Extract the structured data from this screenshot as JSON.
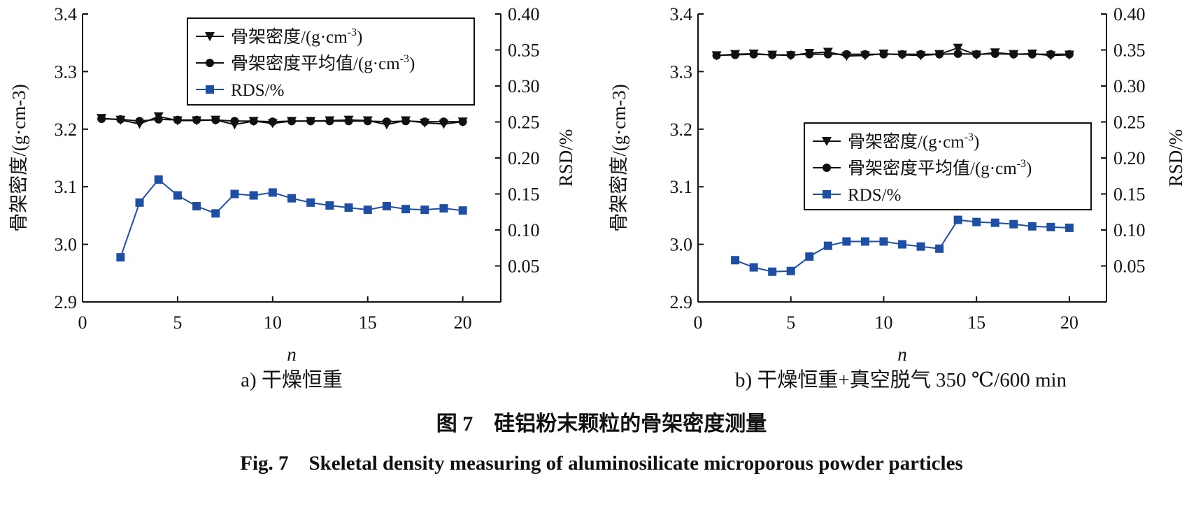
{
  "colors": {
    "density": "#111111",
    "mean": "#111111",
    "rsd": "#1f4fa3"
  },
  "chart_data": [
    {
      "type": "line",
      "subcaption": "a) 干燥恒重",
      "xlabel": "n",
      "ylabel": "骨架密度/(g·cm-3)",
      "y2label": "RSD/%",
      "xlim": [
        0,
        22
      ],
      "ylim": [
        2.9,
        3.4
      ],
      "y2lim": [
        0.0,
        0.4
      ],
      "xticks": [
        0,
        5,
        10,
        15,
        20
      ],
      "yticks": [
        2.9,
        3.0,
        3.1,
        3.2,
        3.3,
        3.4
      ],
      "y2ticks": [
        0.05,
        0.1,
        0.15,
        0.2,
        0.25,
        0.3,
        0.35,
        0.4
      ],
      "legend": {
        "placement": "top-right",
        "entries": [
          "骨架密度/(g·cm",
          "骨架密度平均值/(g·cm",
          "RDS/%"
        ],
        "superscript": "-3",
        "closing": ")"
      },
      "series": [
        {
          "name": "骨架密度",
          "axis": "left",
          "marker": "triangle-down",
          "x": [
            1,
            2,
            3,
            4,
            5,
            6,
            7,
            8,
            9,
            10,
            11,
            12,
            13,
            14,
            15,
            16,
            17,
            18,
            19,
            20
          ],
          "y": [
            3.219,
            3.216,
            3.209,
            3.222,
            3.215,
            3.215,
            3.216,
            3.208,
            3.214,
            3.21,
            3.214,
            3.214,
            3.215,
            3.216,
            3.215,
            3.208,
            3.215,
            3.211,
            3.209,
            3.213
          ]
        },
        {
          "name": "骨架密度平均值",
          "axis": "left",
          "marker": "circle",
          "x": [
            1,
            2,
            3,
            4,
            5,
            6,
            7,
            8,
            9,
            10,
            11,
            12,
            13,
            14,
            15,
            16,
            17,
            18,
            19,
            20
          ],
          "y": [
            3.218,
            3.217,
            3.214,
            3.217,
            3.216,
            3.216,
            3.216,
            3.214,
            3.214,
            3.213,
            3.214,
            3.214,
            3.214,
            3.214,
            3.214,
            3.213,
            3.214,
            3.213,
            3.213,
            3.213
          ]
        },
        {
          "name": "RDS/%",
          "axis": "right",
          "marker": "square",
          "x": [
            2,
            3,
            4,
            5,
            6,
            7,
            8,
            9,
            10,
            11,
            12,
            13,
            14,
            15,
            16,
            17,
            18,
            19,
            20
          ],
          "y": [
            0.062,
            0.138,
            0.17,
            0.148,
            0.133,
            0.123,
            0.15,
            0.148,
            0.152,
            0.144,
            0.138,
            0.134,
            0.131,
            0.128,
            0.133,
            0.129,
            0.128,
            0.13,
            0.127
          ]
        }
      ]
    },
    {
      "type": "line",
      "subcaption": "b) 干燥恒重+真空脱气 350 ℃/600 min",
      "xlabel": "n",
      "ylabel": "骨架密度/(g·cm-3)",
      "y2label": "RSD/%",
      "xlim": [
        0,
        22
      ],
      "ylim": [
        2.9,
        3.4
      ],
      "y2lim": [
        0.0,
        0.4
      ],
      "xticks": [
        0,
        5,
        10,
        15,
        20
      ],
      "yticks": [
        2.9,
        3.0,
        3.1,
        3.2,
        3.3,
        3.4
      ],
      "y2ticks": [
        0.05,
        0.1,
        0.15,
        0.2,
        0.25,
        0.3,
        0.35,
        0.4
      ],
      "legend": {
        "placement": "center-right",
        "entries": [
          "骨架密度/(g·cm",
          "骨架密度平均值/(g·cm",
          "RDS/%"
        ],
        "superscript": "-3",
        "closing": ")"
      },
      "series": [
        {
          "name": "骨架密度",
          "axis": "left",
          "marker": "triangle-down",
          "x": [
            1,
            2,
            3,
            4,
            5,
            6,
            7,
            8,
            9,
            10,
            11,
            12,
            13,
            14,
            15,
            16,
            17,
            18,
            19,
            20
          ],
          "y": [
            3.328,
            3.33,
            3.331,
            3.329,
            3.328,
            3.332,
            3.334,
            3.327,
            3.328,
            3.331,
            3.329,
            3.328,
            3.33,
            3.341,
            3.329,
            3.333,
            3.33,
            3.331,
            3.328,
            3.329
          ]
        },
        {
          "name": "骨架密度平均值",
          "axis": "left",
          "marker": "circle",
          "x": [
            1,
            2,
            3,
            4,
            5,
            6,
            7,
            8,
            9,
            10,
            11,
            12,
            13,
            14,
            15,
            16,
            17,
            18,
            19,
            20
          ],
          "y": [
            3.328,
            3.329,
            3.33,
            3.329,
            3.329,
            3.33,
            3.33,
            3.33,
            3.33,
            3.33,
            3.33,
            3.33,
            3.33,
            3.331,
            3.33,
            3.331,
            3.33,
            3.33,
            3.33,
            3.33
          ]
        },
        {
          "name": "RDS/%",
          "axis": "right",
          "marker": "square",
          "x": [
            2,
            3,
            4,
            5,
            6,
            7,
            8,
            9,
            10,
            11,
            12,
            13,
            14,
            15,
            16,
            17,
            18,
            19,
            20
          ],
          "y": [
            0.058,
            0.048,
            0.042,
            0.043,
            0.063,
            0.078,
            0.084,
            0.084,
            0.084,
            0.08,
            0.077,
            0.074,
            0.114,
            0.111,
            0.11,
            0.108,
            0.105,
            0.104,
            0.103
          ]
        }
      ]
    }
  ],
  "caption": {
    "chinese": "图 7　硅铝粉末颗粒的骨架密度测量",
    "english": "Fig. 7　Skeletal density measuring of aluminosilicate microporous powder particles"
  }
}
